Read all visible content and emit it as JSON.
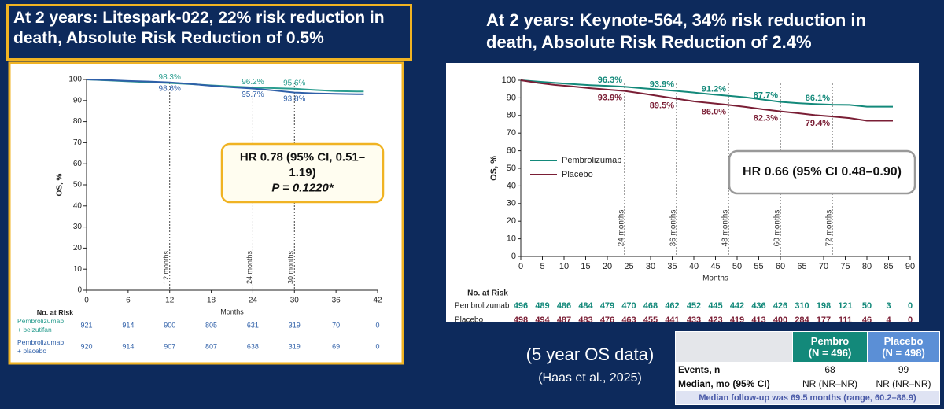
{
  "left_heading": "At 2 years: Litespark-022, 22% risk reduction in death, Absolute Risk Reduction of 0.5%",
  "right_heading": "At 2 years: Keynote-564, 34% risk reduction in death, Absolute Risk Reduction of 2.4%",
  "chart_data": [
    {
      "type": "line",
      "x_label": "Months",
      "y_label": "OS, %",
      "xlim": [
        0,
        42
      ],
      "xticks": [
        0,
        6,
        12,
        18,
        24,
        30,
        36,
        42
      ],
      "ylim": [
        0,
        100
      ],
      "yticks": [
        0,
        10,
        20,
        30,
        40,
        50,
        60,
        70,
        80,
        90,
        100
      ],
      "series": [
        {
          "color": "#2a9d8f",
          "x": [
            0,
            3,
            6,
            9,
            12,
            15,
            18,
            21,
            24,
            27,
            30,
            33,
            36,
            39,
            40
          ],
          "values": [
            100,
            99.6,
            99.1,
            98.7,
            98.3,
            97.8,
            97.2,
            96.7,
            96.2,
            95.9,
            95.6,
            95.0,
            94.5,
            94.3,
            94.3
          ],
          "landmarks": {
            "x": [
              12,
              24,
              30
            ],
            "values": [
              98.3,
              96.2,
              95.6
            ],
            "value_labels": [
              "98.3%",
              "96.2%",
              "95.6%"
            ]
          }
        },
        {
          "color": "#2e5fa8",
          "x": [
            0,
            3,
            6,
            9,
            12,
            15,
            18,
            21,
            24,
            27,
            30,
            33,
            36,
            39,
            40
          ],
          "values": [
            100,
            99.7,
            99.3,
            99.0,
            98.6,
            97.9,
            97.0,
            96.3,
            95.7,
            94.8,
            93.8,
            93.4,
            93.2,
            93.0,
            93.0
          ],
          "landmarks": {
            "x": [
              12,
              24,
              30
            ],
            "values": [
              98.6,
              95.7,
              93.8
            ],
            "value_labels": [
              "98.6%",
              "95.7%",
              "93.8%"
            ]
          }
        }
      ],
      "reference_lines": [
        {
          "x": 12,
          "label": "12 months"
        },
        {
          "x": 24,
          "label": "24 months"
        },
        {
          "x": 30,
          "label": "30 months"
        }
      ],
      "hr_box": {
        "lines": [
          "HR 0.78 (95% CI, 0.51–",
          "1.19)",
          "P = 0.1220*"
        ]
      },
      "risk_table": {
        "title": "No. at Risk",
        "rows": [
          {
            "name_lines": [
              "Pembrolizumab",
              "+ belzutifan"
            ],
            "values": [
              921,
              914,
              900,
              805,
              631,
              319,
              70,
              0
            ]
          },
          {
            "name_lines": [
              "Pembrolizumab",
              "+ placebo"
            ],
            "values": [
              920,
              914,
              907,
              807,
              638,
              319,
              69,
              0
            ]
          }
        ]
      }
    },
    {
      "type": "line",
      "x_label": "Months",
      "y_label": "OS, %",
      "legend": "center-left",
      "xlim": [
        0,
        90
      ],
      "xticks": [
        0,
        5,
        10,
        15,
        20,
        25,
        30,
        35,
        40,
        45,
        50,
        55,
        60,
        65,
        70,
        75,
        80,
        85,
        90
      ],
      "ylim": [
        0,
        100
      ],
      "yticks": [
        0,
        10,
        20,
        30,
        40,
        50,
        60,
        70,
        80,
        90,
        100
      ],
      "series": [
        {
          "name": "Pembrolizumab",
          "color": "#13897a",
          "x": [
            0,
            4,
            8,
            12,
            16,
            20,
            24,
            28,
            32,
            36,
            40,
            44,
            48,
            52,
            56,
            60,
            64,
            68,
            72,
            76,
            80,
            84,
            86
          ],
          "values": [
            100,
            99.2,
            98.5,
            97.8,
            97.2,
            96.8,
            96.3,
            95.5,
            94.7,
            93.9,
            93.0,
            92.0,
            91.2,
            90.3,
            89.0,
            87.7,
            87.0,
            86.5,
            86.1,
            86.0,
            85.0,
            85.0,
            85.0
          ],
          "landmarks": {
            "x": [
              24,
              36,
              48,
              60,
              72
            ],
            "values": [
              96.3,
              93.9,
              91.2,
              87.7,
              86.1
            ],
            "value_labels": [
              "96.3%",
              "93.9%",
              "91.2%",
              "87.7%",
              "86.1%"
            ]
          }
        },
        {
          "name": "Placebo",
          "color": "#7a1e35",
          "x": [
            0,
            4,
            8,
            12,
            16,
            20,
            24,
            28,
            32,
            36,
            40,
            44,
            48,
            52,
            56,
            60,
            64,
            68,
            72,
            76,
            80,
            84,
            86
          ],
          "values": [
            100,
            98.5,
            97.3,
            96.5,
            95.5,
            94.7,
            93.9,
            92.5,
            91.0,
            89.5,
            88.0,
            87.0,
            86.0,
            84.8,
            83.5,
            82.3,
            81.3,
            80.2,
            79.4,
            78.5,
            77.0,
            77.0,
            77.0
          ],
          "landmarks": {
            "x": [
              24,
              36,
              48,
              60,
              72
            ],
            "values": [
              93.9,
              89.5,
              86.0,
              82.3,
              79.4
            ],
            "value_labels": [
              "93.9%",
              "89.5%",
              "86.0%",
              "82.3%",
              "79.4%"
            ]
          }
        }
      ],
      "reference_lines": [
        {
          "x": 24,
          "label": "24 months"
        },
        {
          "x": 36,
          "label": "36 months"
        },
        {
          "x": 48,
          "label": "48 months"
        },
        {
          "x": 60,
          "label": "60 months"
        },
        {
          "x": 72,
          "label": "72 months"
        }
      ],
      "hr_box": {
        "lines": [
          "HR 0.66 (95% CI 0.48–0.90)"
        ]
      },
      "risk_table": {
        "title": "No. at Risk",
        "rows": [
          {
            "name_lines": [
              "Pembrolizumab"
            ],
            "values": [
              496,
              489,
              486,
              484,
              479,
              470,
              468,
              462,
              452,
              445,
              442,
              436,
              426,
              310,
              198,
              121,
              50,
              3,
              0
            ]
          },
          {
            "name_lines": [
              "Placebo"
            ],
            "values": [
              498,
              494,
              487,
              483,
              476,
              463,
              455,
              441,
              433,
              423,
              419,
              413,
              400,
              284,
              177,
              111,
              46,
              4,
              0
            ]
          }
        ]
      }
    }
  ],
  "footnotes": {
    "label": "(5 year OS data)",
    "citation": "(Haas et al., 2025)"
  },
  "summary_table": {
    "headers": [
      [
        "Pembro",
        "(N = 496)"
      ],
      [
        "Placebo",
        "(N = 498)"
      ]
    ],
    "rows": [
      [
        "Events, n",
        68,
        99
      ],
      [
        "Median, mo (95% CI)",
        "NR (NR–NR)",
        "NR (NR–NR)"
      ]
    ],
    "footer": "Median follow-up was 69.5 months (range, 60.2–86.9)"
  }
}
